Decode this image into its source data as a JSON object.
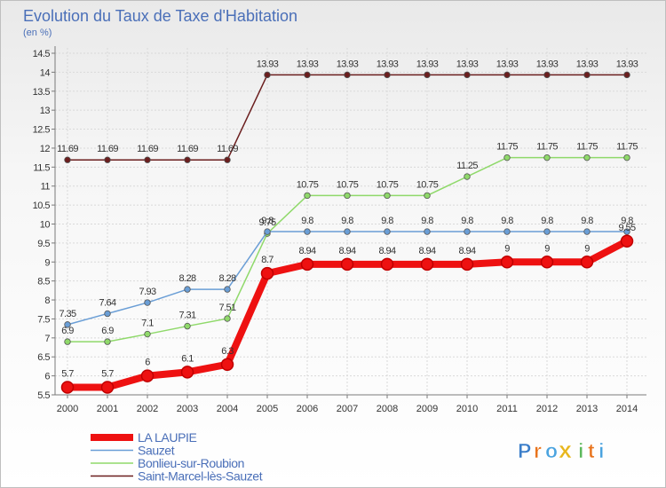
{
  "chart_data": {
    "type": "line",
    "title": "Evolution du Taux de Taxe d'Habitation",
    "subtitle": "(en %)",
    "x": [
      "2000",
      "2001",
      "2002",
      "2003",
      "2004",
      "2005",
      "2006",
      "2007",
      "2008",
      "2009",
      "2010",
      "2011",
      "2012",
      "2013",
      "2014"
    ],
    "ylim": [
      5.5,
      14.5
    ],
    "yticks": [
      "5.5",
      "6",
      "6.5",
      "7",
      "7.5",
      "8",
      "8.5",
      "9",
      "9.5",
      "10",
      "10.5",
      "11",
      "11.5",
      "12",
      "12.5",
      "13",
      "13.5",
      "14",
      "14.5"
    ],
    "grid": true,
    "legend_position": "bottom-left",
    "series": [
      {
        "name": "Saint-Marcel-lès-Sauzet",
        "color": "#6b1e1e",
        "values": [
          11.69,
          11.69,
          11.69,
          11.69,
          11.69,
          13.93,
          13.93,
          13.93,
          13.93,
          13.93,
          13.93,
          13.93,
          13.93,
          13.93,
          13.93
        ],
        "labels": [
          "11.69",
          "11.69",
          "11.69",
          "11.69",
          "11.69",
          "13.93",
          "13.93",
          "13.93",
          "13.93",
          "13.93",
          "13.93",
          "13.93",
          "13.93",
          "13.93",
          "13.93"
        ]
      },
      {
        "name": "Bonlieu-sur-Roubion",
        "color": "#8fd96a",
        "values": [
          6.9,
          6.9,
          7.1,
          7.31,
          7.51,
          9.75,
          10.75,
          10.75,
          10.75,
          10.75,
          11.25,
          11.75,
          11.75,
          11.75,
          11.75
        ],
        "labels": [
          "6.9",
          "6.9",
          "7.1",
          "7.31",
          "7.51",
          "9.75",
          "10.75",
          "10.75",
          "10.75",
          "10.75",
          "11.25",
          "11.75",
          "11.75",
          "11.75",
          "11.75"
        ]
      },
      {
        "name": "Sauzet",
        "color": "#6a9ed6",
        "values": [
          7.35,
          7.64,
          7.93,
          8.28,
          8.28,
          9.8,
          9.8,
          9.8,
          9.8,
          9.8,
          9.8,
          9.8,
          9.8,
          9.8,
          9.8
        ],
        "labels": [
          "7.35",
          "7.64",
          "7.93",
          "8.28",
          "8.28",
          "9.8",
          "9.8",
          "9.8",
          "9.8",
          "9.8",
          "9.8",
          "9.8",
          "9.8",
          "9.8",
          "9.8"
        ]
      },
      {
        "name": "LA LAUPIE",
        "color": "#ee1111",
        "values": [
          5.7,
          5.7,
          6,
          6.1,
          6.3,
          8.7,
          8.94,
          8.94,
          8.94,
          8.94,
          8.94,
          9,
          9,
          9,
          9.55
        ],
        "labels": [
          "5.7",
          "5.7",
          "6",
          "6.1",
          "6.3",
          "8.7",
          "8.94",
          "8.94",
          "8.94",
          "8.94",
          "8.94",
          "9",
          "9",
          "9",
          "9.55"
        ]
      }
    ]
  },
  "logo": {
    "text": "Proxiti",
    "letters": [
      "P",
      "r",
      "o",
      "x",
      "i",
      "t",
      "i"
    ]
  }
}
